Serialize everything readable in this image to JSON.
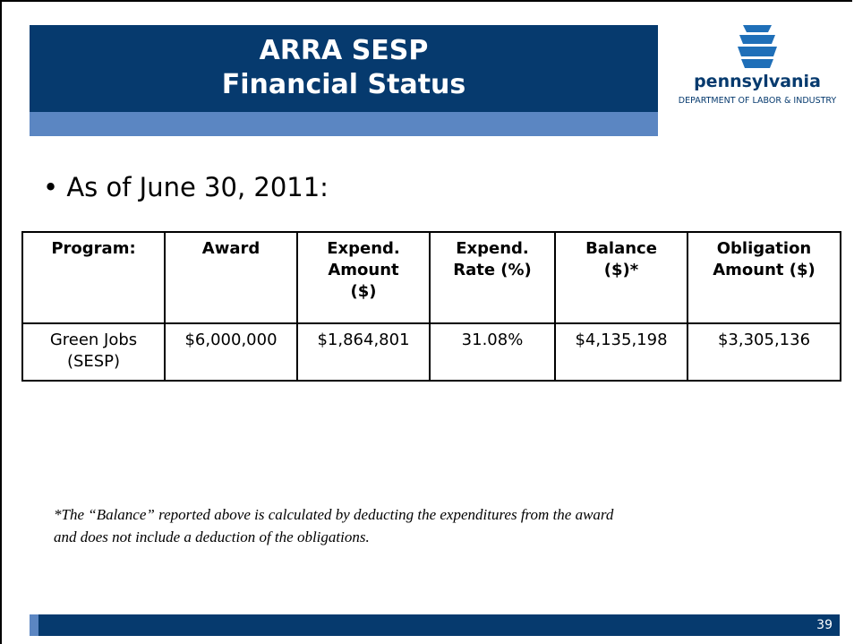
{
  "header": {
    "title": [
      "ARRA SESP",
      "Financial Status"
    ]
  },
  "logo": {
    "name": "pennsylvania",
    "department": "DEPARTMENT OF LABOR & INDUSTRY"
  },
  "bullet": "As of June 30, 2011:",
  "table": {
    "columns": [
      [
        "Program:"
      ],
      [
        "Award"
      ],
      [
        "Expend.",
        "Amount",
        "($)"
      ],
      [
        "Expend.",
        "Rate (%)"
      ],
      [
        "Balance",
        "($)*"
      ],
      [
        "Obligation",
        "Amount ($)"
      ]
    ],
    "rows": [
      [
        [
          "Green Jobs",
          "(SESP)"
        ],
        [
          "$6,000,000"
        ],
        [
          "$1,864,801"
        ],
        [
          "31.08%"
        ],
        [
          "$4,135,198"
        ],
        [
          "$3,305,136"
        ]
      ]
    ]
  },
  "footnote": [
    "*The “Balance” reported above is calculated by deducting the expenditures from the award",
    "and does not include a deduction of the obligations."
  ],
  "page_number": "39"
}
